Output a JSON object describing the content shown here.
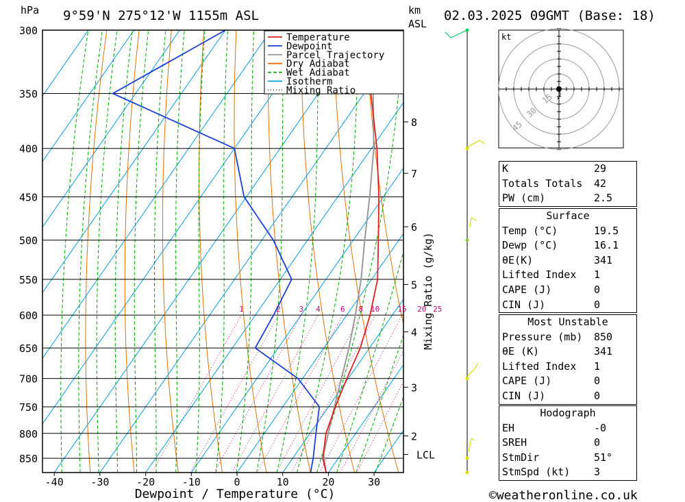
{
  "header": {
    "location": "9°59'N 275°12'W 1155m ASL",
    "datetime": "02.03.2025 09GMT (Base: 18)",
    "pressure_unit": "hPa",
    "km_unit_line1": "km",
    "km_unit_line2": "ASL"
  },
  "footer": {
    "credit": "©weatheronline.co.uk"
  },
  "colors": {
    "temperature": "#e02020",
    "dewpoint": "#1a3fd6",
    "parcel": "#999999",
    "dry_adiabat": "#e07000",
    "wet_adiabat": "#00aa00",
    "isotherm": "#00a0e0",
    "mixing_ratio": "#cc0077",
    "wind": "#dddd00"
  },
  "chart_data": {
    "type": "line",
    "title": "",
    "xlabel": "Dewpoint / Temperature (°C)",
    "ylabel": "hPa",
    "secondary_ylabel": "Mixing Ratio (g/kg)",
    "x_ticks": [
      -40,
      -30,
      -20,
      -10,
      0,
      10,
      20,
      30
    ],
    "y_ticks": [
      300,
      350,
      400,
      450,
      500,
      550,
      600,
      650,
      700,
      750,
      800,
      850
    ],
    "ylim": [
      880,
      300
    ],
    "y_scale": "log",
    "grid": true,
    "legend_position": "top-center",
    "legend": [
      "Temperature",
      "Dewpoint",
      "Parcel Trajectory",
      "Dry Adiabat",
      "Wet Adiabat",
      "Isotherm",
      "Mixing Ratio"
    ],
    "mixing_ratio_labels": [
      "1",
      "2",
      "3",
      "4",
      "6",
      "8",
      "10",
      "15",
      "20",
      "25"
    ],
    "altitude_km_ticks": [
      {
        "label": "8",
        "pressure": 375
      },
      {
        "label": "7",
        "pressure": 425
      },
      {
        "label": "6",
        "pressure": 484
      },
      {
        "label": "5",
        "pressure": 557
      },
      {
        "label": "4",
        "pressure": 625
      },
      {
        "label": "3",
        "pressure": 715
      },
      {
        "label": "2",
        "pressure": 805
      },
      {
        "label": "LCL",
        "pressure": 842
      }
    ],
    "series": [
      {
        "name": "Temperature",
        "points": [
          [
            880,
            19.5
          ],
          [
            850,
            16.6
          ],
          [
            800,
            13.5
          ],
          [
            750,
            11.5
          ],
          [
            700,
            9.7
          ],
          [
            650,
            8.0
          ],
          [
            600,
            5.1
          ],
          [
            550,
            1.3
          ],
          [
            500,
            -4.5
          ],
          [
            450,
            -11.0
          ],
          [
            400,
            -18.8
          ],
          [
            350,
            -28.5
          ],
          [
            300,
            -39.5
          ]
        ]
      },
      {
        "name": "Dewpoint",
        "points": [
          [
            880,
            16.1
          ],
          [
            850,
            14.5
          ],
          [
            800,
            11.3
          ],
          [
            750,
            8.0
          ],
          [
            700,
            -1.0
          ],
          [
            650,
            -15.0
          ],
          [
            600,
            -16.0
          ],
          [
            550,
            -17.5
          ],
          [
            500,
            -27.5
          ],
          [
            450,
            -40.5
          ],
          [
            400,
            -50.0
          ],
          [
            350,
            -85.0
          ],
          [
            300,
            -70.0
          ]
        ]
      },
      {
        "name": "Parcel Trajectory",
        "points": [
          [
            880,
            19.5
          ],
          [
            842,
            16.2
          ],
          [
            800,
            14.0
          ],
          [
            750,
            11.3
          ],
          [
            700,
            8.5
          ],
          [
            650,
            5.5
          ],
          [
            600,
            1.9
          ],
          [
            550,
            -2.3
          ],
          [
            500,
            -7.5
          ],
          [
            450,
            -13.0
          ],
          [
            400,
            -19.5
          ],
          [
            350,
            -28.0
          ],
          [
            300,
            -41.0
          ]
        ]
      }
    ]
  },
  "hodograph": {
    "unit_label": "kt",
    "ring_labels": [
      "15",
      "30",
      "45"
    ]
  },
  "indices": {
    "top": [
      {
        "label": "K",
        "value": "29"
      },
      {
        "label": "Totals Totals",
        "value": "42"
      },
      {
        "label": "PW (cm)",
        "value": "2.5"
      }
    ],
    "surface": {
      "title": "Surface",
      "rows": [
        {
          "label": "Temp (°C)",
          "value": "19.5"
        },
        {
          "label": "Dewp (°C)",
          "value": "16.1"
        },
        {
          "label": "θE(K)",
          "value": "341"
        },
        {
          "label": "Lifted Index",
          "value": "1"
        },
        {
          "label": "CAPE (J)",
          "value": "0"
        },
        {
          "label": "CIN (J)",
          "value": "0"
        }
      ]
    },
    "most_unstable": {
      "title": "Most Unstable",
      "rows": [
        {
          "label": "Pressure (mb)",
          "value": "850"
        },
        {
          "label": "θE (K)",
          "value": "341"
        },
        {
          "label": "Lifted Index",
          "value": "1"
        },
        {
          "label": "CAPE (J)",
          "value": "0"
        },
        {
          "label": "CIN (J)",
          "value": "0"
        }
      ]
    },
    "hodograph_box": {
      "title": "Hodograph",
      "rows": [
        {
          "label": "EH",
          "value": "-0"
        },
        {
          "label": "SREH",
          "value": "0"
        },
        {
          "label": "StmDir",
          "value": "51°"
        },
        {
          "label": "StmSpd (kt)",
          "value": "3"
        }
      ]
    }
  }
}
